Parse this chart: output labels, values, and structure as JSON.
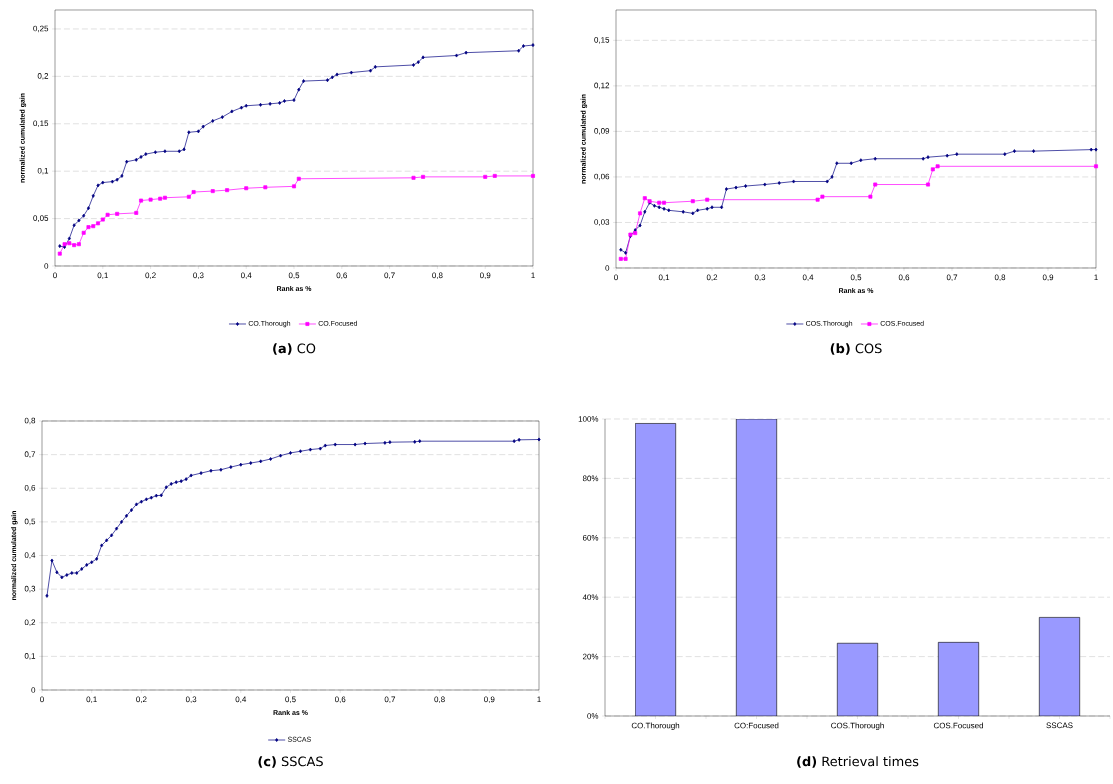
{
  "chart_data": [
    {
      "type": "line",
      "title": "**(a)** CO",
      "xlabel": "Rank as %",
      "ylabel": "normalized cumulated gain",
      "xlim": [
        0,
        1
      ],
      "ylim": [
        0,
        0.27
      ],
      "grid": "y",
      "legend": "bottom",
      "line_style": "solid",
      "xticks": [
        0,
        {
          "value": 0.1,
          "label": "0,1"
        },
        {
          "value": 0.2,
          "label": "0,2"
        },
        {
          "value": 0.3,
          "label": "0,3"
        },
        {
          "value": 0.4,
          "label": "0,4"
        },
        {
          "value": 0.5,
          "label": "0,5"
        },
        {
          "value": 0.6,
          "label": "0,6"
        },
        {
          "value": 0.7,
          "label": "0,7"
        },
        {
          "value": 0.8,
          "label": "0,8"
        },
        {
          "value": 0.9,
          "label": "0,9"
        },
        1
      ],
      "yticks": [
        0,
        {
          "value": 0.05,
          "label": "0,05"
        },
        {
          "value": 0.1,
          "label": "0,1"
        },
        {
          "value": 0.15,
          "label": "0,15"
        },
        {
          "value": 0.2,
          "label": "0,2"
        },
        {
          "value": 0.25,
          "label": "0,25"
        }
      ],
      "series": [
        {
          "name": "CO.Thorough",
          "color": "#000080",
          "marker": "diamond",
          "x": [
            0.01,
            0.02,
            0.03,
            0.04,
            0.05,
            0.06,
            0.07,
            0.08,
            0.09,
            0.1,
            0.12,
            0.13,
            0.14,
            0.15,
            0.17,
            0.18,
            0.19,
            0.21,
            0.23,
            0.26,
            0.27,
            0.28,
            0.3,
            0.31,
            0.33,
            0.35,
            0.37,
            0.39,
            0.4,
            0.43,
            0.45,
            0.47,
            0.48,
            0.5,
            0.51,
            0.52,
            0.57,
            0.58,
            0.59,
            0.62,
            0.66,
            0.67,
            0.75,
            0.76,
            0.77,
            0.84,
            0.86,
            0.97,
            0.98,
            1.0
          ],
          "values": [
            0.021,
            0.02,
            0.029,
            0.043,
            0.048,
            0.053,
            0.061,
            0.074,
            0.085,
            0.088,
            0.089,
            0.091,
            0.095,
            0.11,
            0.112,
            0.115,
            0.118,
            0.12,
            0.121,
            0.121,
            0.123,
            0.141,
            0.142,
            0.147,
            0.153,
            0.157,
            0.163,
            0.167,
            0.169,
            0.17,
            0.171,
            0.172,
            0.174,
            0.175,
            0.186,
            0.195,
            0.196,
            0.199,
            0.202,
            0.204,
            0.206,
            0.21,
            0.212,
            0.215,
            0.22,
            0.222,
            0.225,
            0.227,
            0.232,
            0.233
          ]
        },
        {
          "name": "CO.Focused",
          "color": "#ff00ff",
          "marker": "square",
          "x": [
            0.01,
            0.02,
            0.03,
            0.04,
            0.05,
            0.06,
            0.07,
            0.08,
            0.09,
            0.1,
            0.11,
            0.13,
            0.17,
            0.18,
            0.2,
            0.22,
            0.23,
            0.28,
            0.29,
            0.33,
            0.36,
            0.4,
            0.44,
            0.5,
            0.51,
            0.75,
            0.77,
            0.9,
            0.92,
            1.0
          ],
          "values": [
            0.013,
            0.023,
            0.024,
            0.022,
            0.023,
            0.035,
            0.041,
            0.042,
            0.045,
            0.049,
            0.054,
            0.055,
            0.056,
            0.069,
            0.07,
            0.071,
            0.072,
            0.073,
            0.078,
            0.079,
            0.08,
            0.082,
            0.083,
            0.084,
            0.092,
            0.093,
            0.094,
            0.094,
            0.095,
            0.095
          ]
        }
      ]
    },
    {
      "type": "line",
      "title": "**(b)** COS",
      "xlabel": "Rank as %",
      "ylabel": "normalized cumulated gain",
      "xlim": [
        0,
        1
      ],
      "ylim": [
        0,
        0.17
      ],
      "grid": "y",
      "legend": "bottom",
      "line_style": "solid",
      "xticks": [
        0,
        {
          "value": 0.1,
          "label": "0,1"
        },
        {
          "value": 0.2,
          "label": "0,2"
        },
        {
          "value": 0.3,
          "label": "0,3"
        },
        {
          "value": 0.4,
          "label": "0,4"
        },
        {
          "value": 0.5,
          "label": "0,5"
        },
        {
          "value": 0.6,
          "label": "0,6"
        },
        {
          "value": 0.7,
          "label": "0,7"
        },
        {
          "value": 0.8,
          "label": "0,8"
        },
        {
          "value": 0.9,
          "label": "0,9"
        },
        1
      ],
      "yticks": [
        0,
        {
          "value": 0.03,
          "label": "0,03"
        },
        {
          "value": 0.06,
          "label": "0,06"
        },
        {
          "value": 0.09,
          "label": "0,09"
        },
        {
          "value": 0.12,
          "label": "0,12"
        },
        {
          "value": 0.15,
          "label": "0,15"
        }
      ],
      "series": [
        {
          "name": "COS.Thorough",
          "color": "#000080",
          "marker": "diamond",
          "x": [
            0.01,
            0.02,
            0.03,
            0.04,
            0.05,
            0.06,
            0.07,
            0.08,
            0.09,
            0.1,
            0.11,
            0.14,
            0.16,
            0.17,
            0.19,
            0.2,
            0.22,
            0.23,
            0.25,
            0.27,
            0.31,
            0.34,
            0.37,
            0.44,
            0.45,
            0.46,
            0.49,
            0.51,
            0.54,
            0.64,
            0.65,
            0.69,
            0.71,
            0.81,
            0.83,
            0.87,
            0.99,
            1.0
          ],
          "values": [
            0.012,
            0.01,
            0.021,
            0.025,
            0.028,
            0.037,
            0.043,
            0.041,
            0.04,
            0.039,
            0.038,
            0.037,
            0.036,
            0.038,
            0.039,
            0.04,
            0.04,
            0.052,
            0.053,
            0.054,
            0.055,
            0.056,
            0.057,
            0.057,
            0.06,
            0.069,
            0.069,
            0.071,
            0.072,
            0.072,
            0.073,
            0.074,
            0.075,
            0.075,
            0.077,
            0.077,
            0.078,
            0.078
          ]
        },
        {
          "name": "COS.Focused",
          "color": "#ff00ff",
          "marker": "square",
          "x": [
            0.01,
            0.02,
            0.03,
            0.04,
            0.05,
            0.06,
            0.07,
            0.09,
            0.1,
            0.16,
            0.19,
            0.42,
            0.43,
            0.53,
            0.54,
            0.65,
            0.66,
            0.67,
            1.0
          ],
          "values": [
            0.006,
            0.006,
            0.022,
            0.023,
            0.036,
            0.046,
            0.044,
            0.043,
            0.043,
            0.044,
            0.045,
            0.045,
            0.047,
            0.047,
            0.055,
            0.055,
            0.065,
            0.067,
            0.067
          ]
        }
      ]
    },
    {
      "type": "line",
      "title": "**(c)** SSCAS",
      "xlabel": "Rank as %",
      "ylabel": "normalized cumulated gain",
      "xlim": [
        0,
        1
      ],
      "ylim": [
        0,
        0.8
      ],
      "grid": "y",
      "legend": "bottom",
      "line_style": "solid",
      "xticks": [
        0,
        {
          "value": 0.1,
          "label": "0,1"
        },
        {
          "value": 0.2,
          "label": "0,2"
        },
        {
          "value": 0.3,
          "label": "0,3"
        },
        {
          "value": 0.4,
          "label": "0,4"
        },
        {
          "value": 0.5,
          "label": "0,5"
        },
        {
          "value": 0.6,
          "label": "0,6"
        },
        {
          "value": 0.7,
          "label": "0,7"
        },
        {
          "value": 0.8,
          "label": "0,8"
        },
        {
          "value": 0.9,
          "label": "0,9"
        },
        1
      ],
      "yticks": [
        0,
        {
          "value": 0.1,
          "label": "0,1"
        },
        {
          "value": 0.2,
          "label": "0,2"
        },
        {
          "value": 0.3,
          "label": "0,3"
        },
        {
          "value": 0.4,
          "label": "0,4"
        },
        {
          "value": 0.5,
          "label": "0,5"
        },
        {
          "value": 0.6,
          "label": "0,6"
        },
        {
          "value": 0.7,
          "label": "0,7"
        },
        {
          "value": 0.8,
          "label": "0,8"
        }
      ],
      "series": [
        {
          "name": "SSCAS",
          "color": "#000080",
          "marker": "diamond",
          "x": [
            0.01,
            0.02,
            0.03,
            0.04,
            0.05,
            0.06,
            0.07,
            0.08,
            0.09,
            0.1,
            0.11,
            0.12,
            0.13,
            0.14,
            0.15,
            0.16,
            0.17,
            0.18,
            0.19,
            0.2,
            0.21,
            0.22,
            0.23,
            0.24,
            0.25,
            0.26,
            0.27,
            0.28,
            0.29,
            0.3,
            0.32,
            0.34,
            0.36,
            0.38,
            0.4,
            0.42,
            0.44,
            0.46,
            0.48,
            0.5,
            0.52,
            0.54,
            0.56,
            0.57,
            0.59,
            0.63,
            0.65,
            0.69,
            0.7,
            0.75,
            0.76,
            0.95,
            0.96,
            1.0
          ],
          "values": [
            0.28,
            0.385,
            0.35,
            0.335,
            0.342,
            0.348,
            0.348,
            0.36,
            0.372,
            0.38,
            0.39,
            0.43,
            0.445,
            0.46,
            0.48,
            0.5,
            0.518,
            0.535,
            0.552,
            0.56,
            0.567,
            0.572,
            0.578,
            0.579,
            0.603,
            0.613,
            0.618,
            0.621,
            0.627,
            0.638,
            0.645,
            0.652,
            0.655,
            0.663,
            0.67,
            0.675,
            0.68,
            0.687,
            0.697,
            0.705,
            0.71,
            0.715,
            0.718,
            0.727,
            0.73,
            0.73,
            0.733,
            0.735,
            0.737,
            0.738,
            0.74,
            0.74,
            0.744,
            0.745
          ]
        }
      ]
    },
    {
      "type": "bar",
      "title": "**(d)** Retrieval times",
      "categories": [
        "CO.Thorough",
        "CO:Focused",
        "COS.Thorough",
        "COS.Focused",
        "SSCAS"
      ],
      "values": [
        98.5,
        100,
        24.5,
        24.8,
        33.2
      ],
      "color": "#9999ff",
      "ylim": [
        0,
        100
      ],
      "grid": "y",
      "yticks": [
        {
          "value": 0,
          "label": "0%"
        },
        {
          "value": 20,
          "label": "20%"
        },
        {
          "value": 40,
          "label": "40%"
        },
        {
          "value": 60,
          "label": "60%"
        },
        {
          "value": 80,
          "label": "80%"
        },
        {
          "value": 100,
          "label": "100%"
        }
      ]
    }
  ]
}
